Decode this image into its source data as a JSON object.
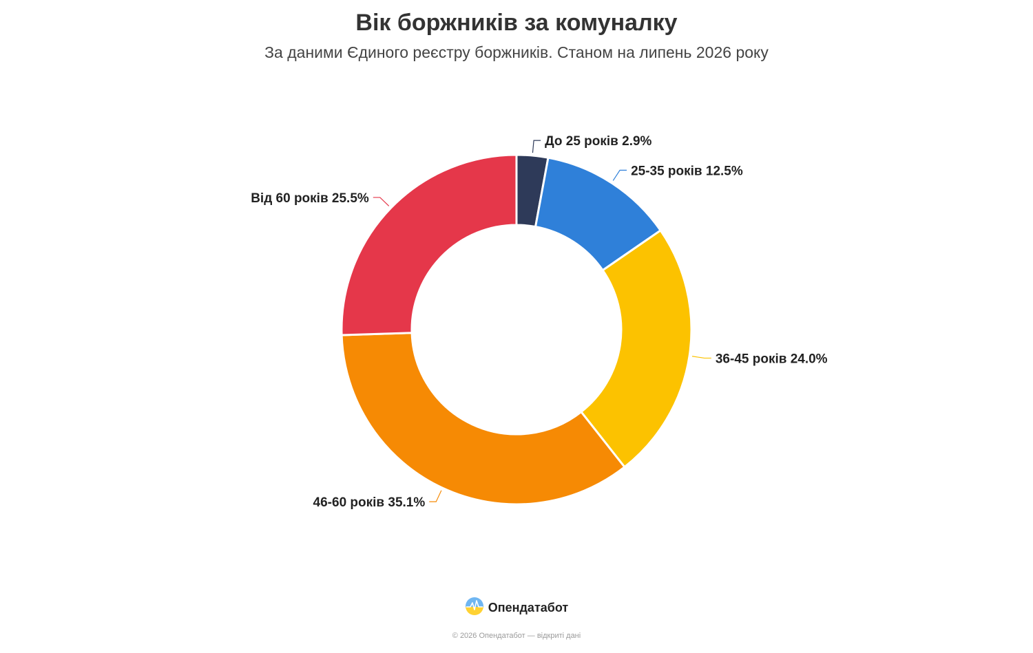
{
  "title": "Вік боржників за комуналку",
  "subtitle": "За даними Єдиного реєстру боржників. Станом на липень 2026 року",
  "chart_data": {
    "type": "pie",
    "variant": "donut",
    "title": "Вік боржників за комуналку",
    "subtitle": "За даними Єдиного реєстру боржників. Станом на липень 2026 року",
    "start_angle_deg": 0,
    "direction": "clockwise",
    "slices": [
      {
        "label": "До 25 років",
        "value": 2.9,
        "display": "До 25 років 2.9%",
        "color": "#2e3a59"
      },
      {
        "label": "25-35 років",
        "value": 12.5,
        "display": "25-35 років 12.5%",
        "color": "#2f80d9"
      },
      {
        "label": "36-45 років",
        "value": 24.0,
        "display": "36-45 років 24.0%",
        "color": "#fcc200"
      },
      {
        "label": "46-60 років",
        "value": 35.1,
        "display": "46-60 років 35.1%",
        "color": "#f68a04"
      },
      {
        "label": "Від 60 років",
        "value": 25.5,
        "display": "Від 60 років 25.5%",
        "color": "#e5374a"
      }
    ],
    "unit": "%",
    "legend": "none",
    "labels": "outside with leader lines"
  },
  "brand": {
    "name": "Опендатабот",
    "logo_icon": "opendatabot-logo-icon"
  },
  "footer": {
    "copyright": "© 2026 Опендатабот — відкриті дані"
  }
}
